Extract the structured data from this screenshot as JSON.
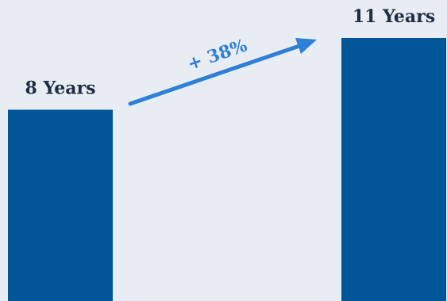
{
  "chart_data": {
    "type": "bar",
    "categories": [
      "",
      ""
    ],
    "values": [
      8,
      11
    ],
    "data_labels": [
      "8 Years",
      "11 Years"
    ],
    "annotation": "+ 38%",
    "colors": {
      "bar": "#005696",
      "arrow": "#2e7fd6",
      "label": "#1f2d44",
      "background": "#e8edf4"
    },
    "ylim": [
      0,
      11
    ],
    "grid": false,
    "legend": "none"
  }
}
